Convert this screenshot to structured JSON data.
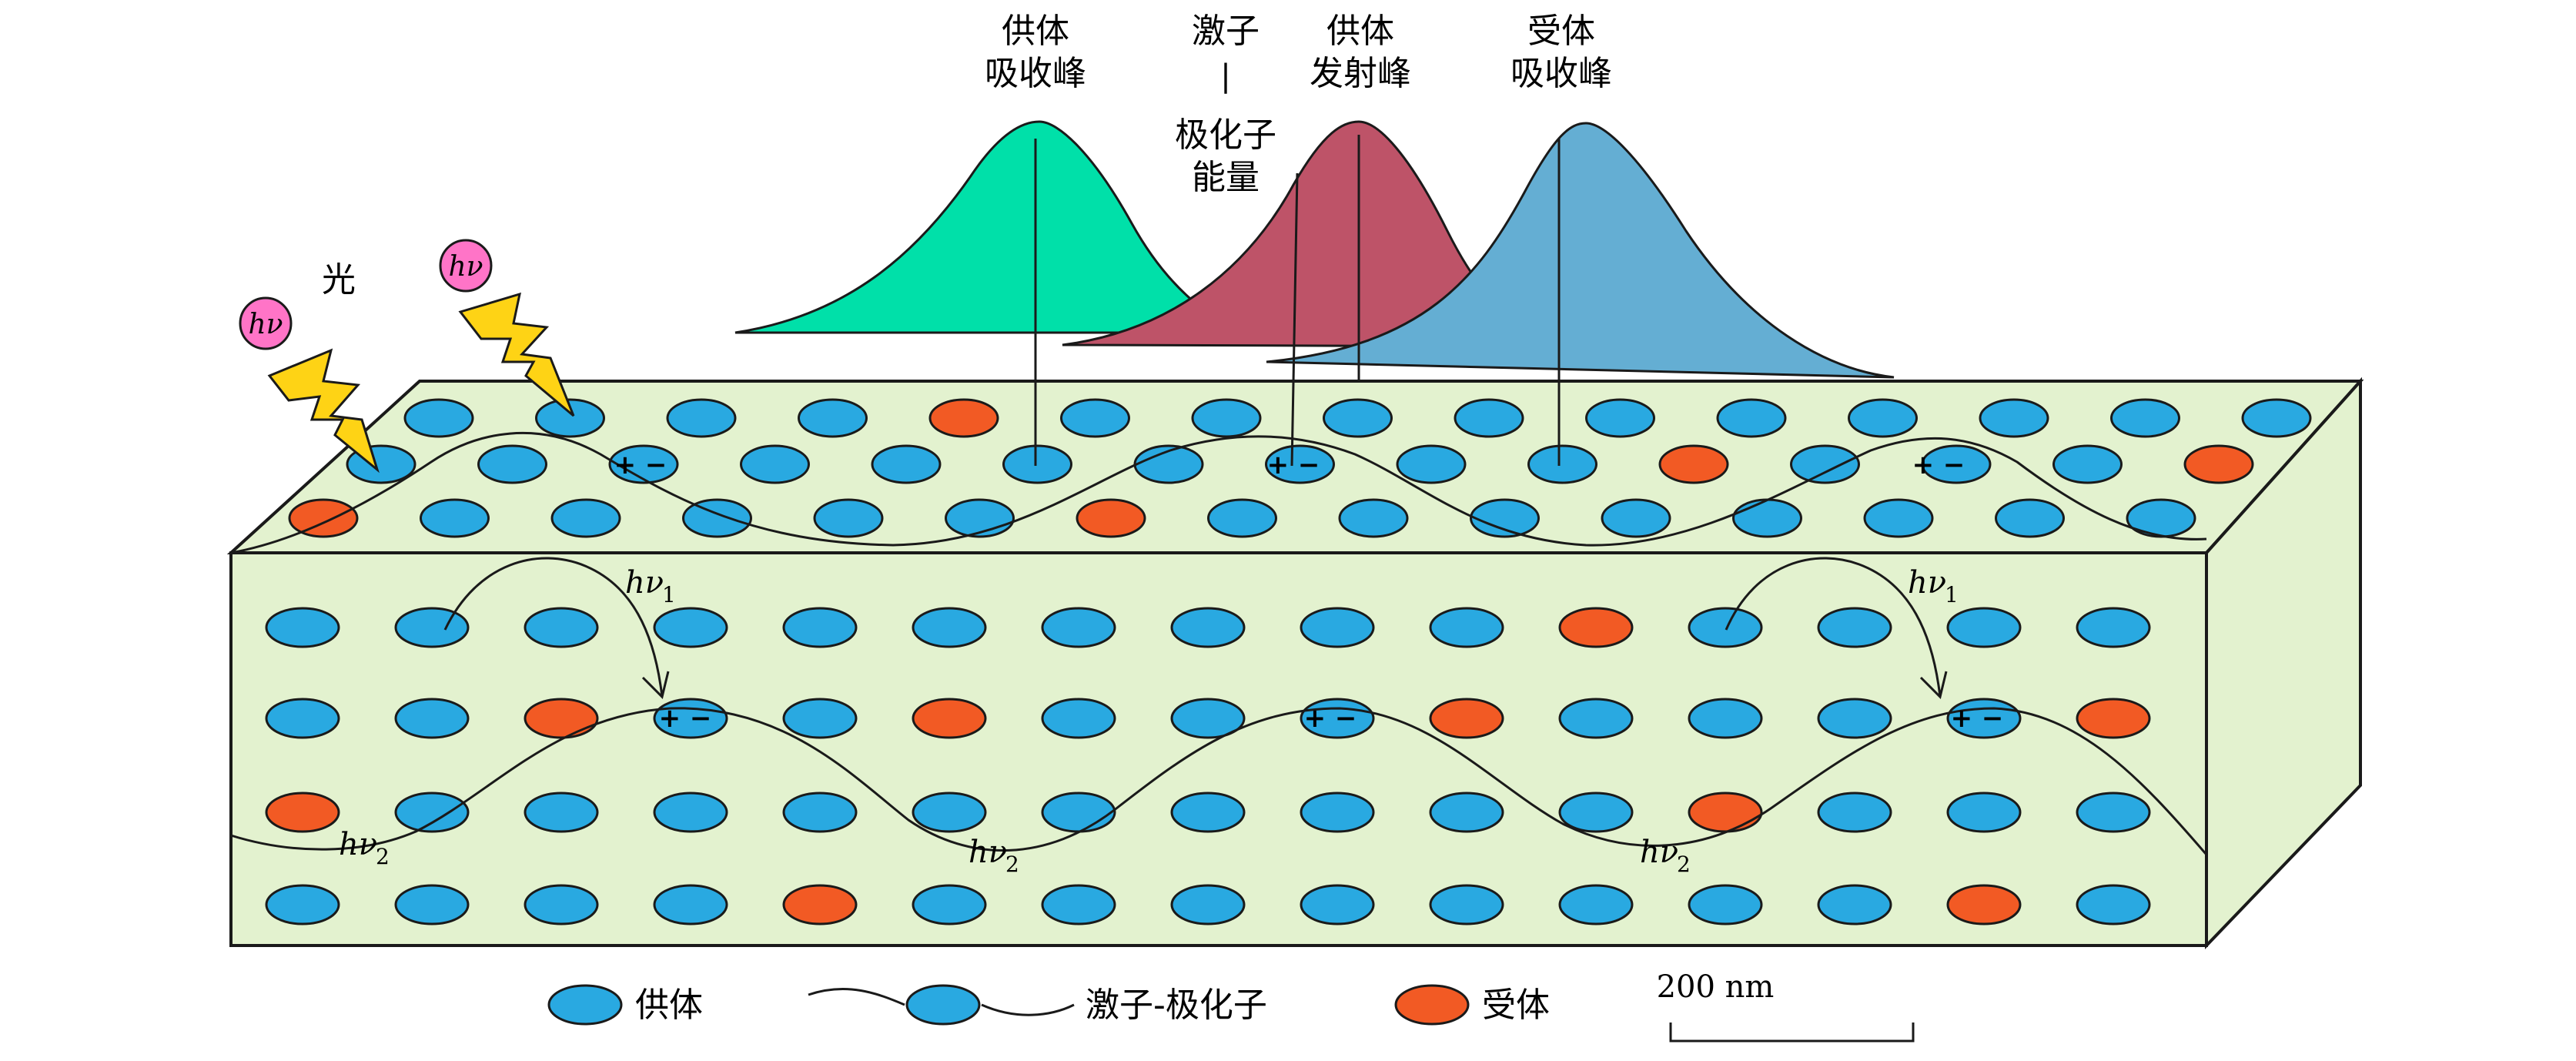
{
  "colors": {
    "slab": "#e3f2cf",
    "donor": "#29a9e1",
    "acceptor": "#f25a24",
    "donor_abs_peak": "#00e0a9",
    "donor_em_peak": "#be5368",
    "acceptor_abs_peak": "#64aed3",
    "photon": "#ff74c7",
    "lightning": "#fed315",
    "outline": "#1a1a1a"
  },
  "labels": {
    "light": "光",
    "photon_symbol": "hν",
    "hv": "hν",
    "sub1": "1",
    "sub2": "2",
    "charge": "+ −"
  },
  "peaks": {
    "donor_absorption": [
      "供体",
      "吸收峰"
    ],
    "exciton_polariton_energy": [
      "激子",
      "|",
      "极化子",
      "能量"
    ],
    "donor_emission": [
      "供体",
      "发射峰"
    ],
    "acceptor_absorption": [
      "受体",
      "吸收峰"
    ]
  },
  "legend": {
    "donor": "供体",
    "exciton_polariton": "激子-极化子",
    "acceptor": "受体"
  },
  "scale_bar": {
    "label": "200 nm"
  }
}
